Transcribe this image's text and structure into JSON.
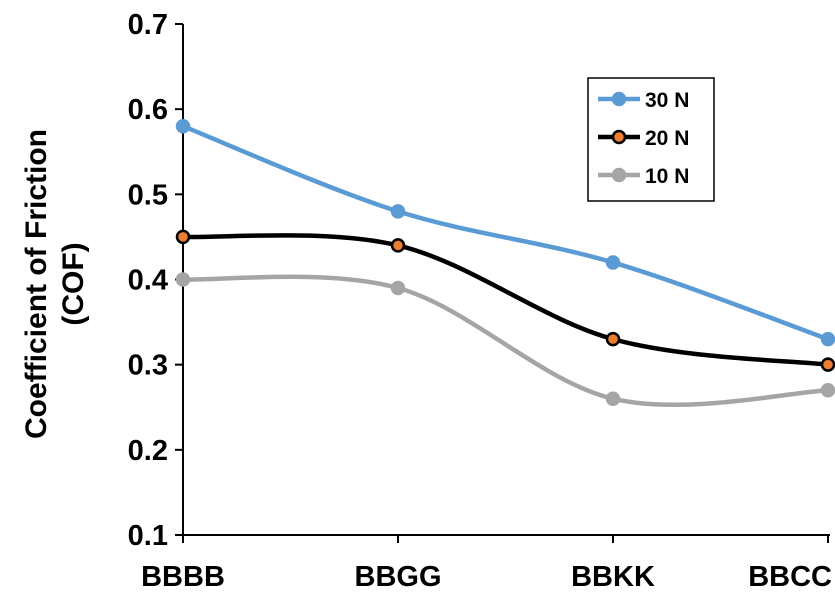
{
  "chart_data": {
    "type": "line",
    "categories": [
      "BBBB",
      "BBGG",
      "BBKK",
      "BBCC"
    ],
    "series": [
      {
        "name": "30 N",
        "values": [
          0.58,
          0.48,
          0.42,
          0.33
        ],
        "color": "#5b9bd5",
        "marker_fill": "#5b9bd5",
        "marker_stroke": "#5b9bd5"
      },
      {
        "name": "20 N",
        "values": [
          0.45,
          0.44,
          0.33,
          0.3
        ],
        "color": "#000000",
        "marker_fill": "#ed7d31",
        "marker_stroke": "#000000"
      },
      {
        "name": "10 N",
        "values": [
          0.4,
          0.39,
          0.26,
          0.27
        ],
        "color": "#a5a5a5",
        "marker_fill": "#a5a5a5",
        "marker_stroke": "#a5a5a5"
      }
    ],
    "ylabel_line1": "Coefficient of Friction",
    "ylabel_line2": "(COF)",
    "xlabel": "",
    "ylim": [
      0.1,
      0.7
    ],
    "yticks": [
      "0.1",
      "0.2",
      "0.3",
      "0.4",
      "0.5",
      "0.6",
      "0.7"
    ],
    "yticks_values": [
      0.1,
      0.2,
      0.3,
      0.4,
      0.5,
      0.6,
      0.7
    ],
    "grid": false,
    "smooth": true,
    "legend_position": "top-right"
  }
}
